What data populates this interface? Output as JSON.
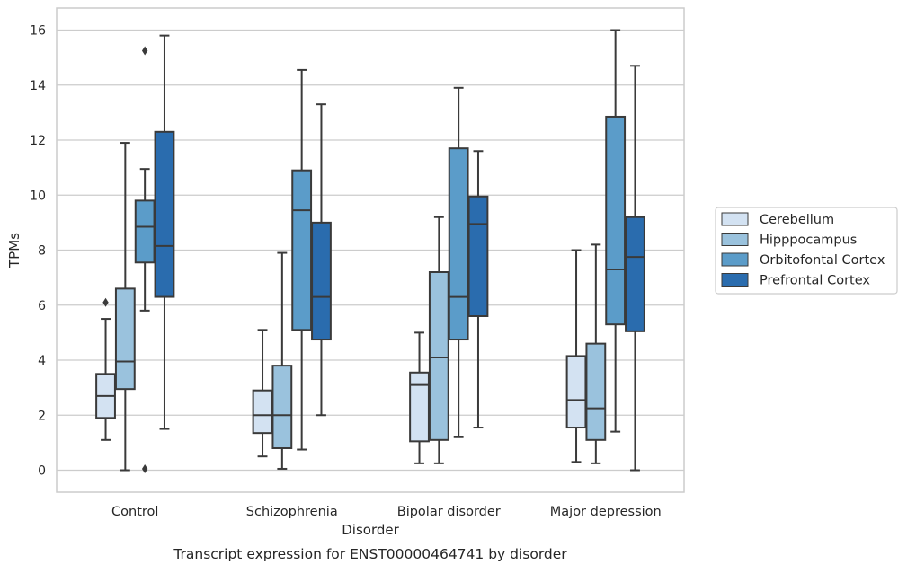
{
  "chart_data": {
    "type": "box",
    "caption": "Transcript expression for ENST00000464741 by disorder",
    "xlabel": "Disorder",
    "ylabel": "TPMs",
    "ylim": [
      -0.8,
      16.8
    ],
    "yticks": [
      0,
      2,
      4,
      6,
      8,
      10,
      12,
      14,
      16
    ],
    "grid": true,
    "legend_position": "right",
    "categories": [
      "Control",
      "Schizophrenia",
      "Bipolar disorder",
      "Major depression"
    ],
    "series": [
      {
        "name": "Cerebellum",
        "color": "#d3e2f2",
        "boxes": [
          {
            "whisker_low": 1.1,
            "q1": 1.9,
            "median": 2.7,
            "q3": 3.5,
            "whisker_high": 5.5,
            "outliers": [
              6.1
            ]
          },
          {
            "whisker_low": 0.5,
            "q1": 1.35,
            "median": 2.0,
            "q3": 2.9,
            "whisker_high": 5.1,
            "outliers": []
          },
          {
            "whisker_low": 0.25,
            "q1": 1.05,
            "median": 3.1,
            "q3": 3.55,
            "whisker_high": 5.0,
            "outliers": []
          },
          {
            "whisker_low": 0.3,
            "q1": 1.55,
            "median": 2.55,
            "q3": 4.15,
            "whisker_high": 8.0,
            "outliers": []
          }
        ]
      },
      {
        "name": "Hipppocampus",
        "color": "#9ac2dd",
        "boxes": [
          {
            "whisker_low": 0.0,
            "q1": 2.95,
            "median": 3.95,
            "q3": 6.6,
            "whisker_high": 11.9,
            "outliers": []
          },
          {
            "whisker_low": 0.05,
            "q1": 0.8,
            "median": 2.0,
            "q3": 3.8,
            "whisker_high": 7.9,
            "outliers": []
          },
          {
            "whisker_low": 0.25,
            "q1": 1.1,
            "median": 4.1,
            "q3": 7.2,
            "whisker_high": 9.2,
            "outliers": []
          },
          {
            "whisker_low": 0.25,
            "q1": 1.1,
            "median": 2.25,
            "q3": 4.6,
            "whisker_high": 8.2,
            "outliers": []
          }
        ]
      },
      {
        "name": "Orbitofontal Cortex",
        "color": "#5b9cc9",
        "boxes": [
          {
            "whisker_low": 5.8,
            "q1": 7.55,
            "median": 8.85,
            "q3": 9.8,
            "whisker_high": 10.95,
            "outliers": [
              15.25,
              0.05
            ]
          },
          {
            "whisker_low": 0.75,
            "q1": 5.1,
            "median": 9.45,
            "q3": 10.9,
            "whisker_high": 14.55,
            "outliers": []
          },
          {
            "whisker_low": 1.2,
            "q1": 4.75,
            "median": 6.3,
            "q3": 11.7,
            "whisker_high": 13.9,
            "outliers": []
          },
          {
            "whisker_low": 1.4,
            "q1": 5.3,
            "median": 7.3,
            "q3": 12.85,
            "whisker_high": 16.0,
            "outliers": []
          }
        ]
      },
      {
        "name": "Prefrontal Cortex",
        "color": "#2a6cae",
        "boxes": [
          {
            "whisker_low": 1.5,
            "q1": 6.3,
            "median": 8.15,
            "q3": 12.3,
            "whisker_high": 15.8,
            "outliers": []
          },
          {
            "whisker_low": 2.0,
            "q1": 4.75,
            "median": 6.3,
            "q3": 9.0,
            "whisker_high": 13.3,
            "outliers": []
          },
          {
            "whisker_low": 1.55,
            "q1": 5.6,
            "median": 8.95,
            "q3": 9.95,
            "whisker_high": 11.6,
            "outliers": []
          },
          {
            "whisker_low": 0.0,
            "q1": 5.05,
            "median": 7.75,
            "q3": 9.2,
            "whisker_high": 14.7,
            "outliers": []
          }
        ]
      }
    ]
  }
}
